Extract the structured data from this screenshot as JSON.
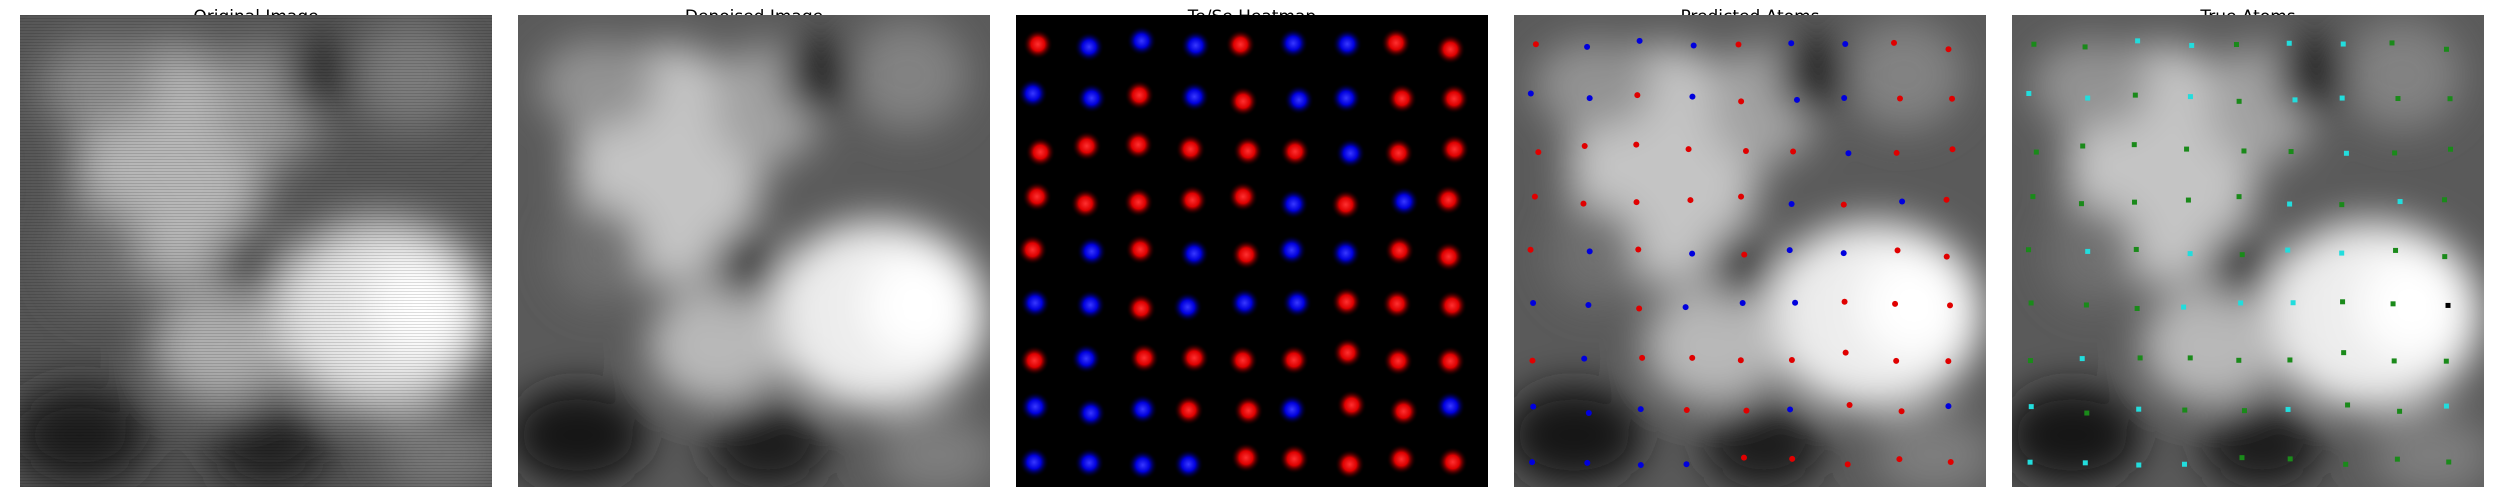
{
  "panels": [
    {
      "title": "Original Image"
    },
    {
      "title": "Denoised Image"
    },
    {
      "title": "Te/Se Heatmap"
    },
    {
      "title": "Predicted Atoms"
    },
    {
      "title": "True Atoms"
    }
  ],
  "colors": {
    "te_heat": "#ff1a1a",
    "se_heat": "#1a1aff",
    "pred_te": "#e00000",
    "pred_se": "#0000dd",
    "true_te": "#1a8a1a",
    "true_se": "#22dddd",
    "true_other": "#000000"
  },
  "lattice_labels": [
    "TSSSTSSTT",
    "SSTSTSSTT",
    "TTTTTTSTT",
    "TTTTTSTST",
    "TSTSTSSTT",
    "SSTSSSTTT",
    "TSTTTTTTT",
    "SSSTTSTTS",
    "SSSSTTTTT"
  ],
  "true_labels": [
    "TTSSTSSTT",
    "SSTSTSSTT",
    "TTTTTTSTT",
    "TTTTTSTST",
    "TSTSTSSTT",
    "TTTSSSTTK",
    "TSTTTTTTT",
    "STSTTSTTS",
    "SSSSTTTTT"
  ]
}
